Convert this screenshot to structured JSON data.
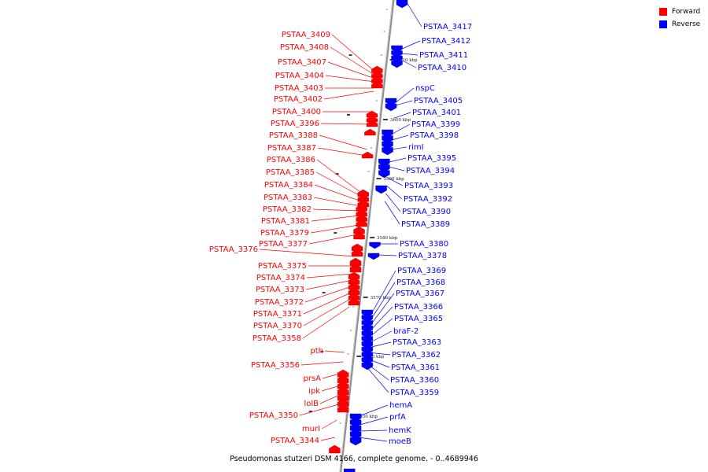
{
  "colors": {
    "forward": "#ff0000",
    "reverse": "#0000ff",
    "axis": "#999999"
  },
  "legend": [
    {
      "label": "Forward",
      "color": "#ff0000"
    },
    {
      "label": "Reverse",
      "color": "#0000ff"
    }
  ],
  "caption": "Pseudomonas stutzeri DSM 4166, complete genome. - 0..4689946",
  "kbp_ticks": [
    "3610 kbp",
    "3600 kbp",
    "3590 kbp",
    "3580 kbp",
    "3570 kbp",
    "3560 kbp",
    "3550 kbp"
  ],
  "forward_genes": [
    "PSTAA_3409",
    "PSTAA_3408",
    "PSTAA_3407",
    "PSTAA_3404",
    "PSTAA_3403",
    "PSTAA_3402",
    "PSTAA_3400",
    "PSTAA_3396",
    "PSTAA_3388",
    "PSTAA_3387",
    "PSTAA_3386",
    "PSTAA_3385",
    "PSTAA_3384",
    "PSTAA_3383",
    "PSTAA_3382",
    "PSTAA_3381",
    "PSTAA_3379",
    "PSTAA_3377",
    "PSTAA_3376",
    "PSTAA_3375",
    "PSTAA_3374",
    "PSTAA_3373",
    "PSTAA_3372",
    "PSTAA_3371",
    "PSTAA_3370",
    "PSTAA_3358",
    "pth",
    "PSTAA_3356",
    "prsA",
    "ipk",
    "lolB",
    "PSTAA_3350",
    "murI",
    "PSTAA_3344"
  ],
  "reverse_genes": [
    "PSTAA_3417",
    "PSTAA_3412",
    "PSTAA_3411",
    "PSTAA_3410",
    "nspC",
    "PSTAA_3405",
    "PSTAA_3401",
    "PSTAA_3399",
    "PSTAA_3398",
    "rimI",
    "PSTAA_3395",
    "PSTAA_3394",
    "PSTAA_3393",
    "PSTAA_3392",
    "PSTAA_3390",
    "PSTAA_3389",
    "PSTAA_3380",
    "PSTAA_3378",
    "PSTAA_3369",
    "PSTAA_3368",
    "PSTAA_3367",
    "PSTAA_3366",
    "PSTAA_3365",
    "braF-2",
    "PSTAA_3363",
    "PSTAA_3362",
    "PSTAA_3361",
    "PSTAA_3360",
    "PSTAA_3359",
    "hemA",
    "prfA",
    "hemK",
    "moeB"
  ]
}
